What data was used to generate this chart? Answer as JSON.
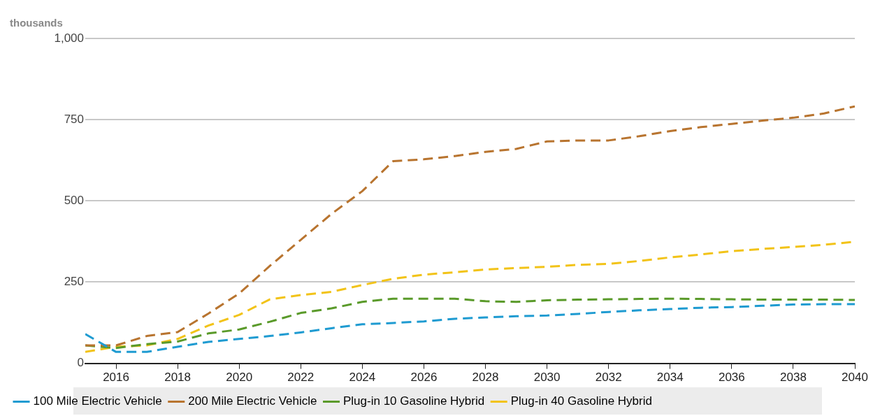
{
  "chart_data": {
    "type": "line",
    "ylabel": "thousands",
    "x": [
      2015,
      2016,
      2017,
      2018,
      2019,
      2020,
      2021,
      2022,
      2023,
      2024,
      2025,
      2026,
      2027,
      2028,
      2029,
      2030,
      2031,
      2032,
      2033,
      2034,
      2035,
      2036,
      2037,
      2038,
      2039,
      2040
    ],
    "series": [
      {
        "name": "100 Mile Electric Vehicle",
        "color": "#1f9bd1",
        "values": [
          90,
          35,
          35,
          51,
          66,
          75,
          84,
          95,
          108,
          120,
          124,
          129,
          137,
          141,
          145,
          147,
          152,
          158,
          163,
          167,
          171,
          173,
          177,
          181,
          182,
          182
        ]
      },
      {
        "name": "200 Mile Electric Vehicle",
        "color": "#b8742f",
        "values": [
          55,
          55,
          84,
          96,
          153,
          215,
          300,
          380,
          460,
          530,
          622,
          628,
          638,
          651,
          660,
          683,
          686,
          686,
          699,
          715,
          727,
          737,
          747,
          756,
          769,
          791
        ]
      },
      {
        "name": "Plug-in 10 Gasoline Hybrid",
        "color": "#5a9a2a",
        "values": [
          55,
          47,
          59,
          67,
          92,
          104,
          128,
          155,
          169,
          189,
          199,
          199,
          199,
          191,
          189,
          194,
          196,
          197,
          198,
          199,
          198,
          197,
          196,
          196,
          196,
          195
        ]
      },
      {
        "name": "Plug-in 40 Gasoline Hybrid",
        "color": "#f2c318",
        "values": [
          35,
          51,
          55,
          75,
          116,
          149,
          197,
          210,
          220,
          241,
          260,
          273,
          280,
          289,
          293,
          297,
          303,
          306,
          315,
          326,
          335,
          345,
          352,
          358,
          365,
          374
        ]
      }
    ],
    "xlim": [
      2015,
      2040
    ],
    "xticks": [
      2016,
      2018,
      2020,
      2022,
      2024,
      2026,
      2028,
      2030,
      2032,
      2034,
      2036,
      2038,
      2040
    ],
    "ylim": [
      0,
      1000
    ],
    "yticks": [
      0,
      250,
      500,
      750,
      {
        "value": 1000,
        "label": "1,000"
      }
    ],
    "grid": "y",
    "legend": "bottom",
    "line_style": "dashed",
    "marker": "none"
  }
}
